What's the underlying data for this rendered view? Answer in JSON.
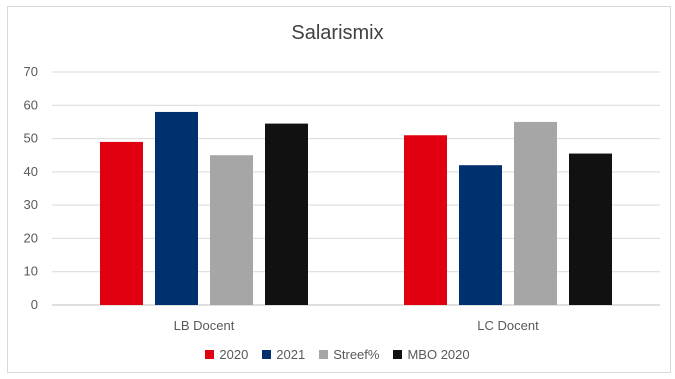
{
  "chart_data": {
    "type": "bar",
    "title": "Salarismix",
    "categories": [
      "LB Docent",
      "LC Docent"
    ],
    "series": [
      {
        "name": "2020",
        "values": [
          49,
          51
        ],
        "color": "#e00010"
      },
      {
        "name": "2021",
        "values": [
          58,
          42
        ],
        "color": "#00316e"
      },
      {
        "name": "Streef%",
        "values": [
          45,
          55
        ],
        "color": "#a6a6a6"
      },
      {
        "name": "MBO 2020",
        "values": [
          54.5,
          45.5
        ],
        "color": "#111111"
      }
    ],
    "ylim": [
      0,
      70
    ],
    "yticks": [
      "0",
      "10",
      "20",
      "30",
      "40",
      "50",
      "60",
      "70"
    ],
    "grid": true,
    "legend_position": "bottom"
  }
}
